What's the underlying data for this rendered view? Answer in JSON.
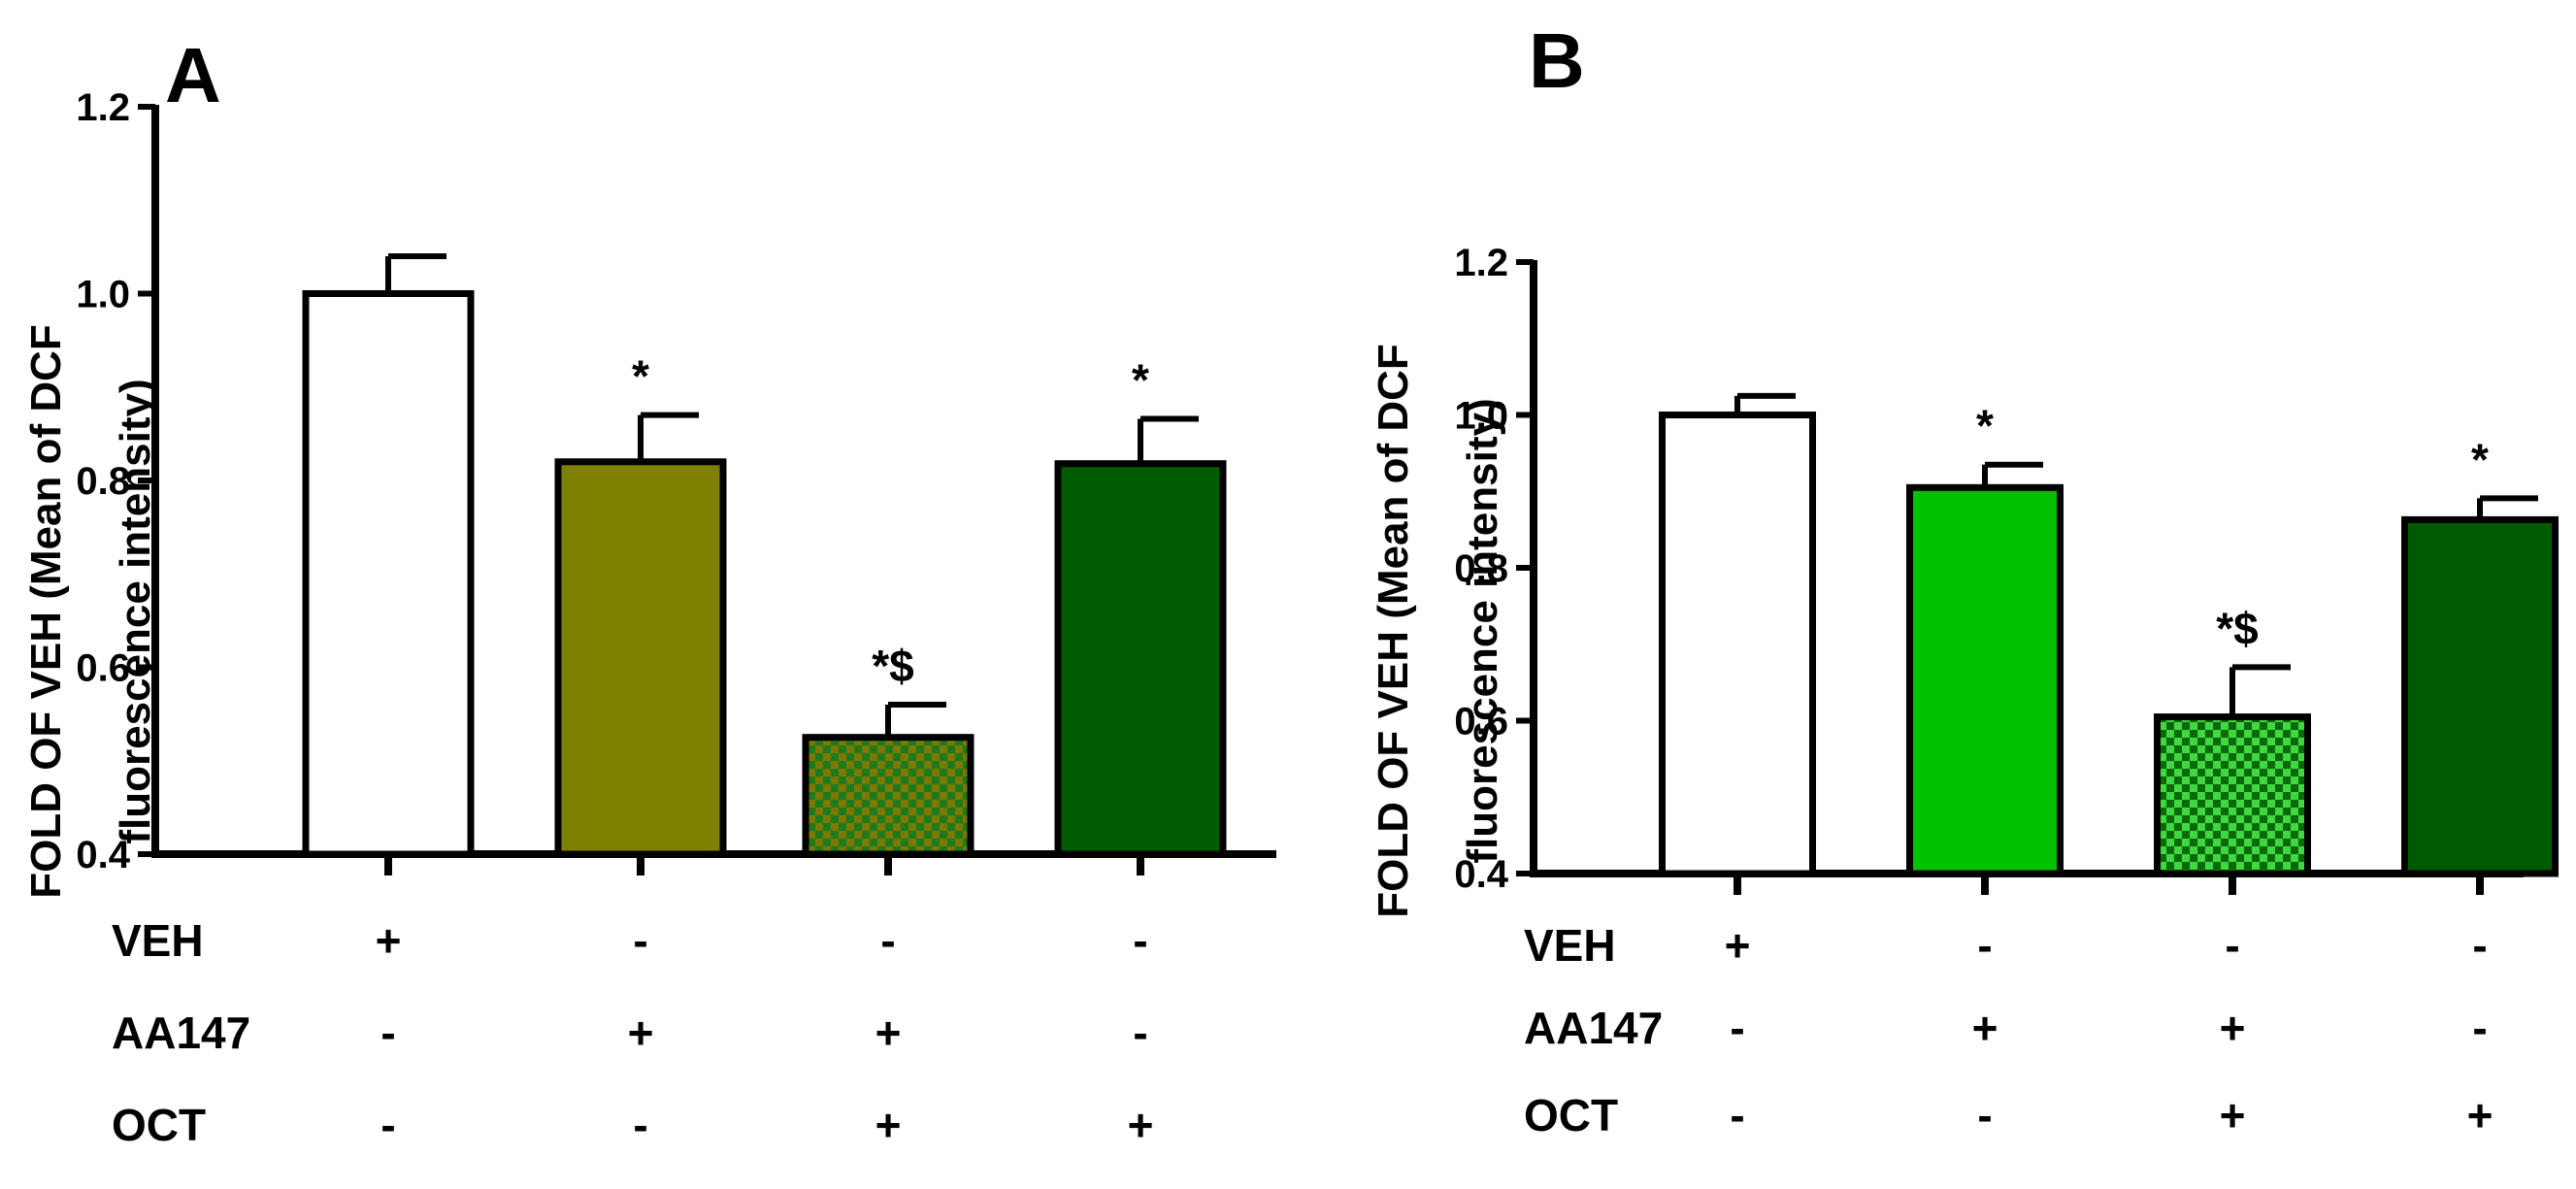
{
  "chart_data": [
    {
      "panel": "A",
      "type": "bar",
      "ylabel_line1": "FOLD OF VEH (Mean of DCF",
      "ylabel_line2": "fluorescence intensity)",
      "ylim": [
        0.4,
        1.2
      ],
      "yticks": [
        "0.4",
        "0.6",
        "0.8",
        "1.0",
        "1.2"
      ],
      "values": [
        1.0,
        0.82,
        0.525,
        0.818
      ],
      "errors": [
        0.04,
        0.05,
        0.035,
        0.048
      ],
      "annotations": [
        "",
        "*",
        "*$",
        "*"
      ],
      "colors": [
        "#ffffff",
        "#808000",
        "#4a8a00",
        "#005a00"
      ],
      "patterns": [
        "solid",
        "solid",
        "checker",
        "solid"
      ],
      "conditions": [
        {
          "name": "VEH",
          "signs": [
            "+",
            "-",
            "-",
            "-"
          ]
        },
        {
          "name": "AA147",
          "signs": [
            "-",
            "+",
            "+",
            "-"
          ]
        },
        {
          "name": "OCT",
          "signs": [
            "-",
            "-",
            "+",
            "+"
          ]
        }
      ]
    },
    {
      "panel": "B",
      "type": "bar",
      "ylabel_line1": "FOLD OF VEH (Mean of DCF",
      "ylabel_line2": "fluorescence intensity)",
      "ylim": [
        0.4,
        1.2
      ],
      "yticks": [
        "0.4",
        "0.6",
        "0.8",
        "1.0",
        "1.2"
      ],
      "values": [
        1.0,
        0.905,
        0.605,
        0.863
      ],
      "errors": [
        0.025,
        0.03,
        0.065,
        0.028
      ],
      "annotations": [
        "",
        "*",
        "*$",
        "*"
      ],
      "colors": [
        "#ffffff",
        "#00c000",
        "#2ad22a",
        "#005a00"
      ],
      "patterns": [
        "solid",
        "solid",
        "checker",
        "solid"
      ],
      "conditions": [
        {
          "name": "VEH",
          "signs": [
            "+",
            "-",
            "-",
            "-"
          ]
        },
        {
          "name": "AA147",
          "signs": [
            "-",
            "+",
            "+",
            "-"
          ]
        },
        {
          "name": "OCT",
          "signs": [
            "-",
            "-",
            "+",
            "+"
          ]
        }
      ]
    }
  ]
}
